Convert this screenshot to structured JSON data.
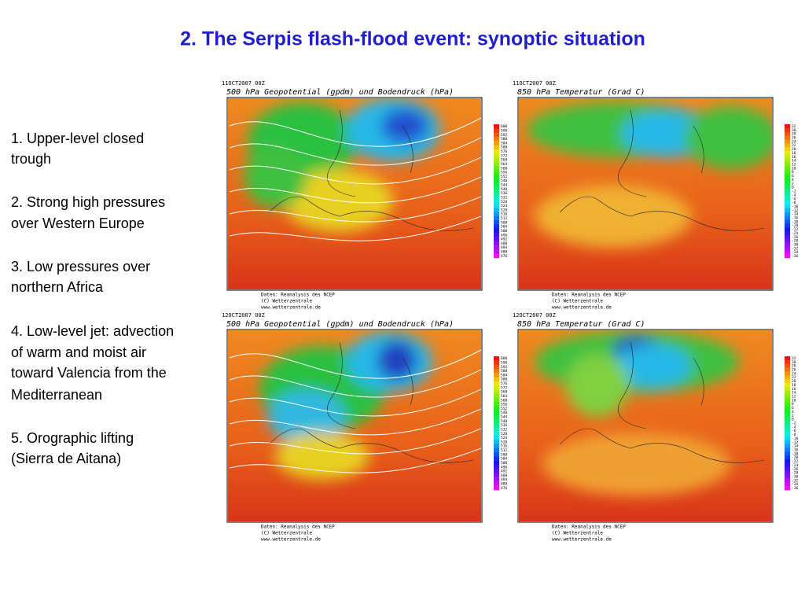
{
  "title": "2.  The Serpis flash-flood event: synoptic situation",
  "points": [
    [
      "1. Upper-level closed",
      "trough"
    ],
    [
      "2. Strong high pressures",
      "over Western Europe"
    ],
    [
      "3. Low pressures over",
      "northern Africa"
    ],
    [
      "4. Low-level jet: advection",
      "of warm and moist air",
      "toward Valencia from the",
      "Mediterranean"
    ],
    [
      "5. Orographic lifting",
      "(Sierra de Aitana)"
    ]
  ],
  "panels": [
    {
      "date": "11OCT2007 00Z",
      "title": "500 hPa Geopotential (gpdm) und Bodendruck (hPa)",
      "scale": [
        600,
        596,
        592,
        588,
        584,
        580,
        576,
        572,
        568,
        564,
        560,
        556,
        552,
        548,
        544,
        540,
        536,
        532,
        528,
        524,
        520,
        516,
        512,
        508,
        504,
        500,
        496,
        492,
        488,
        484,
        480,
        476
      ],
      "credits": [
        "Daten: Reanalysis des NCEP",
        "(C) Wetterzentrale",
        "www.wetterzentrale.de"
      ]
    },
    {
      "date": "11OCT2007 00Z",
      "title": "850 hPa Temperatur (Grad C)",
      "scale": [
        32,
        30,
        28,
        26,
        24,
        22,
        20,
        18,
        16,
        14,
        12,
        10,
        8,
        6,
        4,
        2,
        0,
        -2,
        -4,
        -6,
        -8,
        -10,
        -12,
        -14,
        -16,
        -18,
        -20,
        -22,
        -24,
        -26,
        -28,
        -30,
        -32,
        -34,
        -36
      ],
      "credits": [
        "Daten: Reanalysis des NCEP",
        "(C) Wetterzentrale",
        "www.wetterzentrale.de"
      ]
    },
    {
      "date": "12OCT2007 00Z",
      "title": "500 hPa Geopotential (gpdm) und Bodendruck (hPa)",
      "scale": [
        600,
        596,
        592,
        588,
        584,
        580,
        576,
        572,
        568,
        564,
        560,
        556,
        552,
        548,
        544,
        540,
        536,
        532,
        528,
        524,
        520,
        516,
        512,
        508,
        504,
        500,
        496,
        492,
        488,
        484,
        480,
        476
      ],
      "credits": [
        "Daten: Reanalysis des NCEP",
        "(C) Wetterzentrale",
        "www.wetterzentrale.de"
      ]
    },
    {
      "date": "12OCT2007 00Z",
      "title": "850 hPa Temperatur (Grad C)",
      "scale": [
        32,
        30,
        28,
        26,
        24,
        22,
        20,
        18,
        16,
        14,
        12,
        10,
        8,
        6,
        4,
        2,
        0,
        -2,
        -4,
        -6,
        -8,
        -10,
        -12,
        -14,
        -16,
        -18,
        -20,
        -22,
        -24,
        -26,
        -28,
        -30,
        -32,
        -34,
        -36
      ],
      "credits": [
        "Daten: Reanalysis des NCEP",
        "(C) Wetterzentrale",
        "www.wetterzentrale.de"
      ]
    }
  ]
}
